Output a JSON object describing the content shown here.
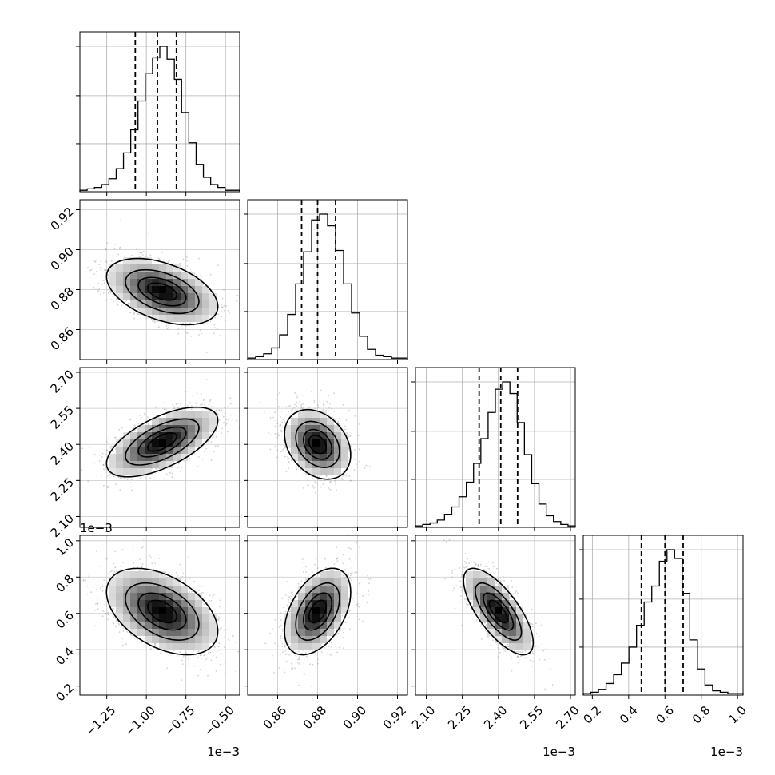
{
  "chart_data": {
    "type": "corner",
    "grid": true,
    "parameters": [
      {
        "range": [
          -1.42,
          -0.41
        ],
        "ticks": [
          -1.25,
          -1.0,
          -0.75,
          -0.5
        ],
        "tick_labels": [
          "−1.25",
          "−1.00",
          "−0.75",
          "−0.50"
        ],
        "offset_text": "1e−3",
        "quantiles": [
          -1.07,
          -0.93,
          -0.81
        ]
      },
      {
        "range": [
          0.845,
          0.925
        ],
        "ticks": [
          0.86,
          0.88,
          0.9,
          0.92
        ],
        "tick_labels": [
          "0.86",
          "0.88",
          "0.90",
          "0.92"
        ],
        "offset_text": "",
        "quantiles": [
          0.872,
          0.88,
          0.889
        ]
      },
      {
        "range": [
          2.055,
          2.72
        ],
        "ticks": [
          2.1,
          2.25,
          2.4,
          2.55,
          2.7
        ],
        "tick_labels": [
          "2.10",
          "2.25",
          "2.40",
          "2.55",
          "2.70"
        ],
        "offset_text": "1e−3",
        "quantiles": [
          2.32,
          2.41,
          2.48
        ]
      },
      {
        "range": [
          0.15,
          1.03
        ],
        "ticks": [
          0.2,
          0.4,
          0.6,
          0.8,
          1.0
        ],
        "tick_labels": [
          "0.2",
          "0.4",
          "0.6",
          "0.8",
          "1.0"
        ],
        "offset_text": "1e−3",
        "quantiles": [
          0.47,
          0.6,
          0.7
        ]
      }
    ],
    "histograms": [
      [
        1,
        2,
        3,
        5,
        9,
        16,
        27,
        43,
        63,
        82,
        93,
        101,
        92,
        78,
        55,
        34,
        19,
        10,
        5,
        3,
        1,
        1
      ],
      [
        1,
        2,
        4,
        8,
        17,
        31,
        52,
        74,
        96,
        100,
        92,
        75,
        52,
        32,
        16,
        7,
        3,
        2,
        1,
        1
      ],
      [
        1,
        2,
        3,
        5,
        9,
        14,
        21,
        31,
        44,
        61,
        79,
        95,
        100,
        92,
        72,
        50,
        30,
        16,
        8,
        4,
        2,
        1
      ],
      [
        1,
        2,
        4,
        8,
        14,
        22,
        33,
        48,
        64,
        75,
        92,
        100,
        94,
        70,
        38,
        18,
        7,
        3,
        2,
        1,
        1
      ]
    ],
    "pairs": [
      {
        "x": 0,
        "y": 1,
        "center": [
          -0.9,
          0.879
        ],
        "sd": [
          0.17,
          0.008
        ],
        "corr": -0.45
      },
      {
        "x": 0,
        "y": 2,
        "center": [
          -0.9,
          2.41
        ],
        "sd": [
          0.17,
          0.07
        ],
        "corr": 0.62
      },
      {
        "x": 1,
        "y": 2,
        "center": [
          0.88,
          2.4
        ],
        "sd": [
          0.008,
          0.07
        ],
        "corr": -0.3
      },
      {
        "x": 0,
        "y": 3,
        "center": [
          -0.9,
          0.61
        ],
        "sd": [
          0.17,
          0.115
        ],
        "corr": -0.45
      },
      {
        "x": 1,
        "y": 3,
        "center": [
          0.88,
          0.61
        ],
        "sd": [
          0.008,
          0.115
        ],
        "corr": 0.45
      },
      {
        "x": 2,
        "y": 3,
        "center": [
          2.4,
          0.61
        ],
        "sd": [
          0.07,
          0.115
        ],
        "corr": -0.72
      }
    ],
    "contour_levels_sigma": [
      0.5,
      1.0,
      1.5,
      2.0
    ]
  }
}
